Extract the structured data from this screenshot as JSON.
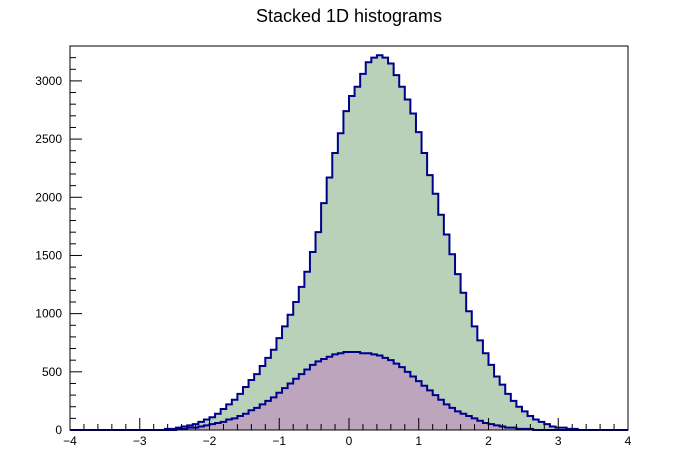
{
  "chart_data": {
    "type": "area",
    "title": "Stacked 1D histograms",
    "xlabel": "",
    "ylabel": "",
    "xlim": [
      -4,
      4
    ],
    "ylim": [
      0,
      3300
    ],
    "x_ticks": [
      "−4",
      "−3",
      "−2",
      "−1",
      "0",
      "1",
      "2",
      "3",
      "4"
    ],
    "y_ticks": [
      "0",
      "500",
      "1000",
      "1500",
      "2000",
      "2500",
      "3000"
    ],
    "grid": false,
    "legend": "none",
    "bin_edges_start": -4,
    "bin_width": 0.08,
    "series": [
      {
        "role": "lower",
        "fill_color": "#bda6bd",
        "line_color": "#00008b",
        "values": [
          0,
          0,
          0,
          0,
          0,
          0,
          0,
          0,
          0,
          0,
          0,
          0,
          0,
          0,
          0,
          0,
          0,
          0,
          0,
          10,
          10,
          20,
          20,
          30,
          40,
          50,
          60,
          70,
          90,
          100,
          120,
          140,
          170,
          190,
          220,
          250,
          280,
          320,
          360,
          400,
          440,
          480,
          520,
          560,
          590,
          610,
          630,
          650,
          660,
          670,
          670,
          670,
          660,
          660,
          650,
          640,
          620,
          600,
          570,
          540,
          500,
          460,
          420,
          380,
          340,
          300,
          260,
          220,
          190,
          160,
          140,
          120,
          100,
          80,
          60,
          50,
          40,
          30,
          20,
          20,
          10,
          10,
          10,
          0,
          0,
          0,
          0,
          0,
          0,
          0,
          0,
          0,
          0,
          0,
          0,
          0,
          0,
          0,
          0,
          0
        ]
      },
      {
        "role": "stack_total",
        "fill_color": "#b8d1b8",
        "line_color": "#00008b",
        "values": [
          0,
          0,
          0,
          0,
          0,
          0,
          0,
          0,
          0,
          0,
          0,
          0,
          0,
          0,
          0,
          0,
          0,
          10,
          10,
          20,
          30,
          40,
          50,
          70,
          90,
          110,
          140,
          180,
          220,
          260,
          310,
          370,
          430,
          480,
          550,
          620,
          690,
          790,
          890,
          990,
          1100,
          1230,
          1360,
          1530,
          1700,
          1950,
          2170,
          2380,
          2550,
          2740,
          2870,
          2950,
          3060,
          3160,
          3200,
          3220,
          3200,
          3150,
          3050,
          2950,
          2840,
          2720,
          2560,
          2380,
          2190,
          2030,
          1850,
          1680,
          1510,
          1340,
          1180,
          1020,
          890,
          770,
          660,
          560,
          460,
          390,
          310,
          250,
          200,
          160,
          120,
          90,
          70,
          50,
          30,
          20,
          20,
          10,
          10,
          0,
          0,
          0,
          0,
          0,
          0,
          0,
          0,
          0
        ]
      }
    ]
  }
}
